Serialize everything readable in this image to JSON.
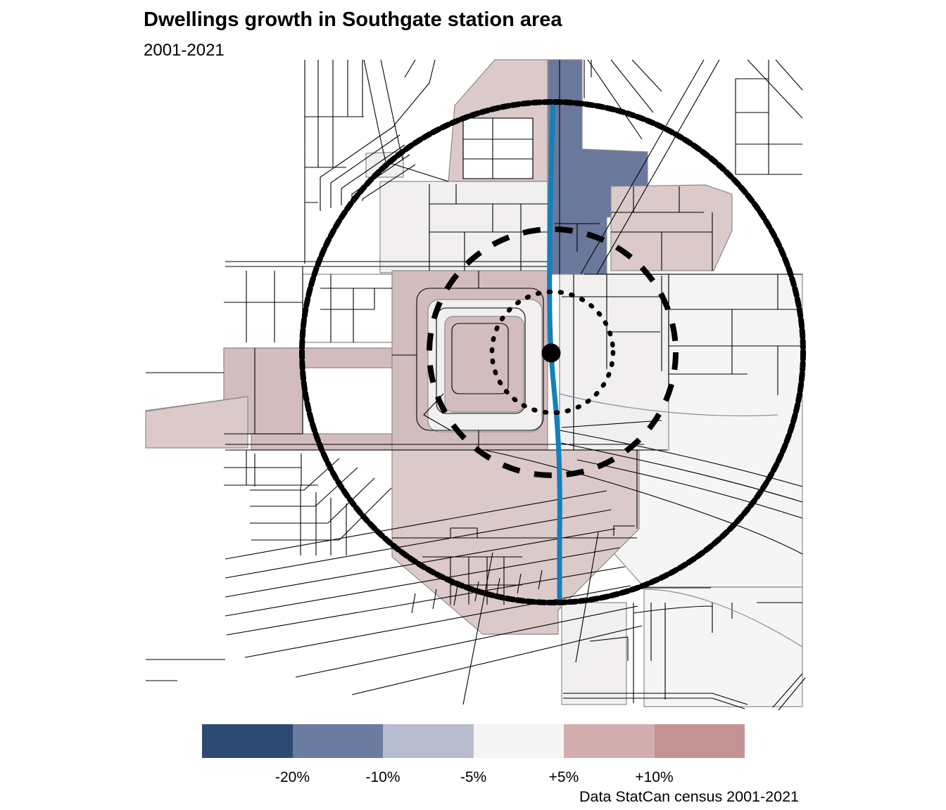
{
  "header": {
    "title": "Dwellings growth in Southgate station area",
    "subtitle": "2001-2021"
  },
  "legend": {
    "swatch_colors": [
      "#2d4a72",
      "#6c7ba0",
      "#b8bccf",
      "#f6f5f5",
      "#d2aeaf",
      "#c39394"
    ],
    "labels": [
      "-20%",
      "-10%",
      "-5%",
      "+5%",
      "+10%"
    ]
  },
  "caption": {
    "text": "Data StatCan census 2001-2021"
  },
  "map": {
    "colors": {
      "strong_decline": "#6a789c",
      "growth_light": "#dcc9ca",
      "growth_mid": "#d3bcbe",
      "stable": "#f1eff0",
      "stable_light": "#f6f5f5",
      "white_block": "#ffffff",
      "transit_line": "#1380bc",
      "street": "#000000",
      "parcel_border": "#8c8c8c",
      "ring": "#000000",
      "station_dot": "#000000"
    }
  }
}
